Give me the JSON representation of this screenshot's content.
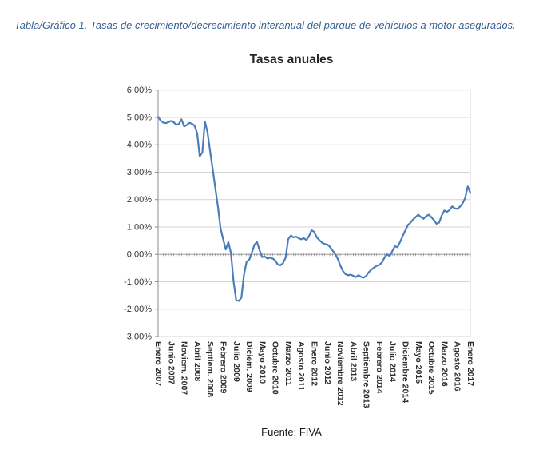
{
  "caption": "Tabla/Gráfico 1. Tasas de crecimiento/decrecimiento interanual del parque de vehículos a motor asegurados.",
  "source": "Fuente: FIVA",
  "chart_data": {
    "type": "line",
    "title": "Tasas anuales",
    "xlabel": "",
    "ylabel": "",
    "y_tick_labels": [
      "6,00%",
      "5,00%",
      "4,00%",
      "3,00%",
      "2,00%",
      "1,00%",
      "0,00%",
      "-1,00%",
      "-2,00%",
      "-3,00%"
    ],
    "ylim": [
      -3,
      6
    ],
    "grid": true,
    "legend_position": "none",
    "line_color": "#4a7ebb",
    "x_frequency": "monthly",
    "x_start": "Enero 2007",
    "x_end": "Enero 2017",
    "x_tick_every": 5,
    "x_tick_labels": [
      "Enero 2007",
      "Junio 2007",
      "Noviem. 2007",
      "Abril 2008",
      "Septiem. 2008",
      "Febrero 2009",
      "Julio 2009",
      "Diciem. 2009",
      "Mayo 2010",
      "Octubre 2010",
      "Marzo 2011",
      "Agosto 2011",
      "Enero 2012",
      "Junio 2012",
      "Noviembre 2012",
      "Abril 2013",
      "Septiembre 2013",
      "Febrero 2014",
      "Julio 2014",
      "Diciembre 2014",
      "Mayo 2015",
      "Octubre 2015",
      "Marzo 2016",
      "Agosto 2016",
      "Enero 2017"
    ],
    "values": [
      5.02,
      4.88,
      4.81,
      4.79,
      4.83,
      4.87,
      4.82,
      4.73,
      4.76,
      4.93,
      4.67,
      4.72,
      4.8,
      4.77,
      4.7,
      4.42,
      3.58,
      3.72,
      4.85,
      4.45,
      3.75,
      3.1,
      2.4,
      1.75,
      0.95,
      0.55,
      0.18,
      0.45,
      0.05,
      -1.0,
      -1.67,
      -1.7,
      -1.58,
      -0.75,
      -0.27,
      -0.2,
      0.05,
      0.35,
      0.45,
      0.15,
      -0.1,
      -0.08,
      -0.15,
      -0.12,
      -0.15,
      -0.22,
      -0.37,
      -0.4,
      -0.32,
      -0.12,
      0.55,
      0.69,
      0.62,
      0.65,
      0.59,
      0.55,
      0.59,
      0.52,
      0.67,
      0.88,
      0.82,
      0.62,
      0.52,
      0.43,
      0.38,
      0.36,
      0.28,
      0.15,
      0.02,
      -0.15,
      -0.4,
      -0.6,
      -0.72,
      -0.76,
      -0.74,
      -0.78,
      -0.83,
      -0.76,
      -0.82,
      -0.85,
      -0.78,
      -0.65,
      -0.55,
      -0.48,
      -0.42,
      -0.38,
      -0.3,
      -0.12,
      0.0,
      -0.06,
      0.12,
      0.3,
      0.26,
      0.45,
      0.67,
      0.87,
      1.07,
      1.16,
      1.27,
      1.36,
      1.45,
      1.36,
      1.3,
      1.39,
      1.45,
      1.36,
      1.25,
      1.12,
      1.16,
      1.42,
      1.6,
      1.55,
      1.62,
      1.75,
      1.68,
      1.66,
      1.74,
      1.86,
      2.05,
      2.48,
      2.25
    ]
  }
}
